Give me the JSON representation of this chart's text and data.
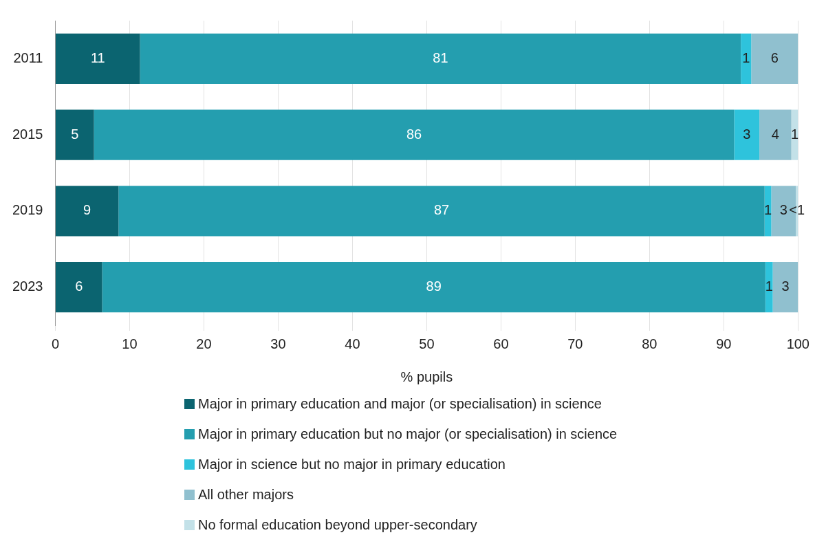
{
  "chart_data": {
    "type": "bar",
    "orientation": "horizontal",
    "stacked": true,
    "categories": [
      "2011",
      "2015",
      "2019",
      "2023"
    ],
    "xlabel": "% pupils",
    "xlim": [
      0,
      100
    ],
    "xticks": [
      0,
      10,
      20,
      30,
      40,
      50,
      60,
      70,
      80,
      90,
      100
    ],
    "grid": "x",
    "legend": "bottom",
    "series": [
      {
        "name": "Major in primary education and major (or specialisation) in science",
        "color": "#0b6470",
        "values": [
          11.4,
          5.2,
          8.5,
          6.3
        ],
        "value_labels": [
          "11",
          "5",
          "9",
          "6"
        ]
      },
      {
        "name": "Major in primary education but no major (or specialisation) in science",
        "color": "#249eaf",
        "values": [
          80.9,
          86.2,
          87,
          89.3
        ],
        "value_labels": [
          "81",
          "86",
          "87",
          "89"
        ]
      },
      {
        "name": "Major in science but no major in primary education",
        "color": "#2ec3dc",
        "values": [
          1.4,
          3.4,
          0.9,
          1.0
        ],
        "value_labels": [
          "1",
          "3",
          "1",
          "1"
        ]
      },
      {
        "name": "All other majors",
        "color": "#90c0cf",
        "values": [
          6.3,
          4.3,
          3.3,
          3.4
        ],
        "value_labels": [
          "6",
          "4",
          "3",
          "3"
        ]
      },
      {
        "name": "No formal education beyond upper-secondary",
        "color": "#c3e1e8",
        "values": [
          null,
          0.9,
          0.3,
          null
        ],
        "value_labels": [
          null,
          "1",
          "<1",
          null
        ]
      }
    ]
  }
}
